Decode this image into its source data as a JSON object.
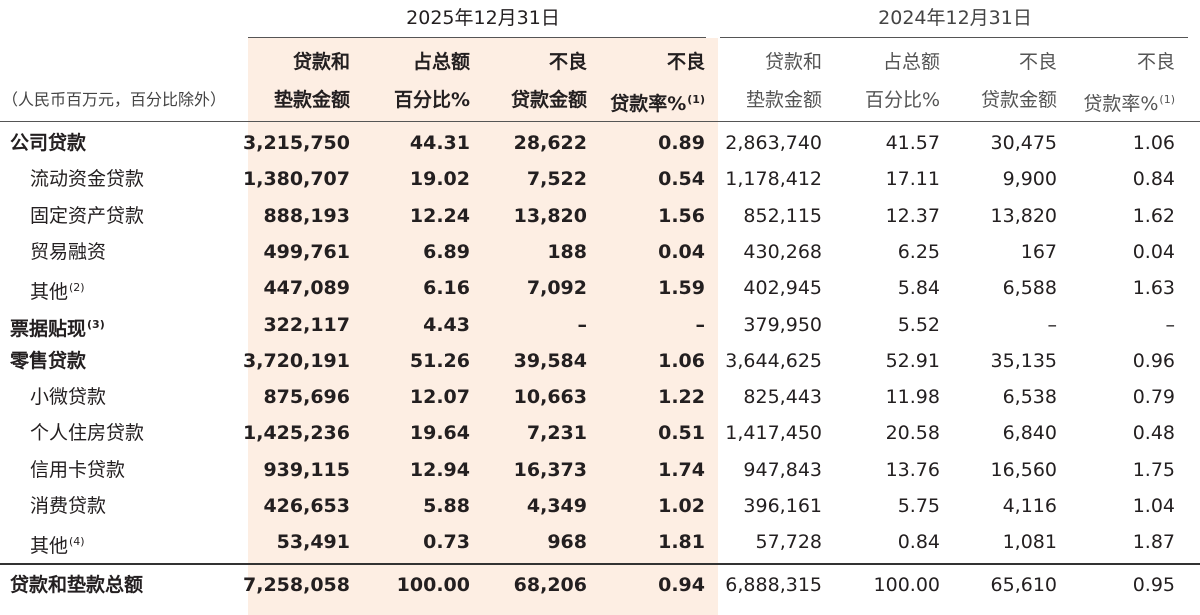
{
  "header": {
    "unit": "（人民币百万元，百分比除外）",
    "periods": [
      {
        "date": "2025年12月31日",
        "columns": [
          {
            "lines": [
              "贷款和",
              "垫款金额"
            ]
          },
          {
            "lines": [
              "占总额",
              "百分比%"
            ]
          },
          {
            "lines": [
              "不良",
              "贷款金额"
            ]
          },
          {
            "lines": [
              "不良",
              "贷款率%"
            ],
            "note": "(1)"
          }
        ]
      },
      {
        "date": "2024年12月31日",
        "columns": [
          {
            "lines": [
              "贷款和",
              "垫款金额"
            ]
          },
          {
            "lines": [
              "占总额",
              "百分比%"
            ]
          },
          {
            "lines": [
              "不良",
              "贷款金额"
            ]
          },
          {
            "lines": [
              "不良",
              "贷款率%"
            ],
            "note": "(1)"
          }
        ]
      }
    ]
  },
  "table": {
    "groups": [
      {
        "label": "公司贷款",
        "cells": [
          "3,215,750",
          "44.31",
          "28,622",
          "0.89",
          "2,863,740",
          "41.57",
          "30,475",
          "1.06"
        ],
        "children": [
          {
            "label": "流动资金贷款",
            "cells": [
              "1,380,707",
              "19.02",
              "7,522",
              "0.54",
              "1,178,412",
              "17.11",
              "9,900",
              "0.84"
            ]
          },
          {
            "label": "固定资产贷款",
            "cells": [
              "888,193",
              "12.24",
              "13,820",
              "1.56",
              "852,115",
              "12.37",
              "13,820",
              "1.62"
            ]
          },
          {
            "label": "贸易融资",
            "cells": [
              "499,761",
              "6.89",
              "188",
              "0.04",
              "430,268",
              "6.25",
              "167",
              "0.04"
            ]
          },
          {
            "label": "其他",
            "note": "(2)",
            "cells": [
              "447,089",
              "6.16",
              "7,092",
              "1.59",
              "402,945",
              "5.84",
              "6,588",
              "1.63"
            ]
          }
        ]
      },
      {
        "label": "票据贴现",
        "note": "(3)",
        "cells": [
          "322,117",
          "4.43",
          "–",
          "–",
          "379,950",
          "5.52",
          "–",
          "–"
        ]
      },
      {
        "label": "零售贷款",
        "cells": [
          "3,720,191",
          "51.26",
          "39,584",
          "1.06",
          "3,644,625",
          "52.91",
          "35,135",
          "0.96"
        ],
        "children": [
          {
            "label": "小微贷款",
            "cells": [
              "875,696",
              "12.07",
              "10,663",
              "1.22",
              "825,443",
              "11.98",
              "6,538",
              "0.79"
            ]
          },
          {
            "label": "个人住房贷款",
            "cells": [
              "1,425,236",
              "19.64",
              "7,231",
              "0.51",
              "1,417,450",
              "20.58",
              "6,840",
              "0.48"
            ]
          },
          {
            "label": "信用卡贷款",
            "cells": [
              "939,115",
              "12.94",
              "16,373",
              "1.74",
              "947,843",
              "13.76",
              "16,560",
              "1.75"
            ]
          },
          {
            "label": "消费贷款",
            "cells": [
              "426,653",
              "5.88",
              "4,349",
              "1.02",
              "396,161",
              "5.75",
              "4,116",
              "1.04"
            ]
          },
          {
            "label": "其他",
            "note": "(4)",
            "cells": [
              "53,491",
              "0.73",
              "968",
              "1.81",
              "57,728",
              "0.84",
              "1,081",
              "1.87"
            ]
          }
        ]
      }
    ],
    "total": {
      "label": "贷款和垫款总额",
      "cells": [
        "7,258,058",
        "100.00",
        "68,206",
        "0.94",
        "6,888,315",
        "100.00",
        "65,610",
        "0.95"
      ]
    }
  }
}
